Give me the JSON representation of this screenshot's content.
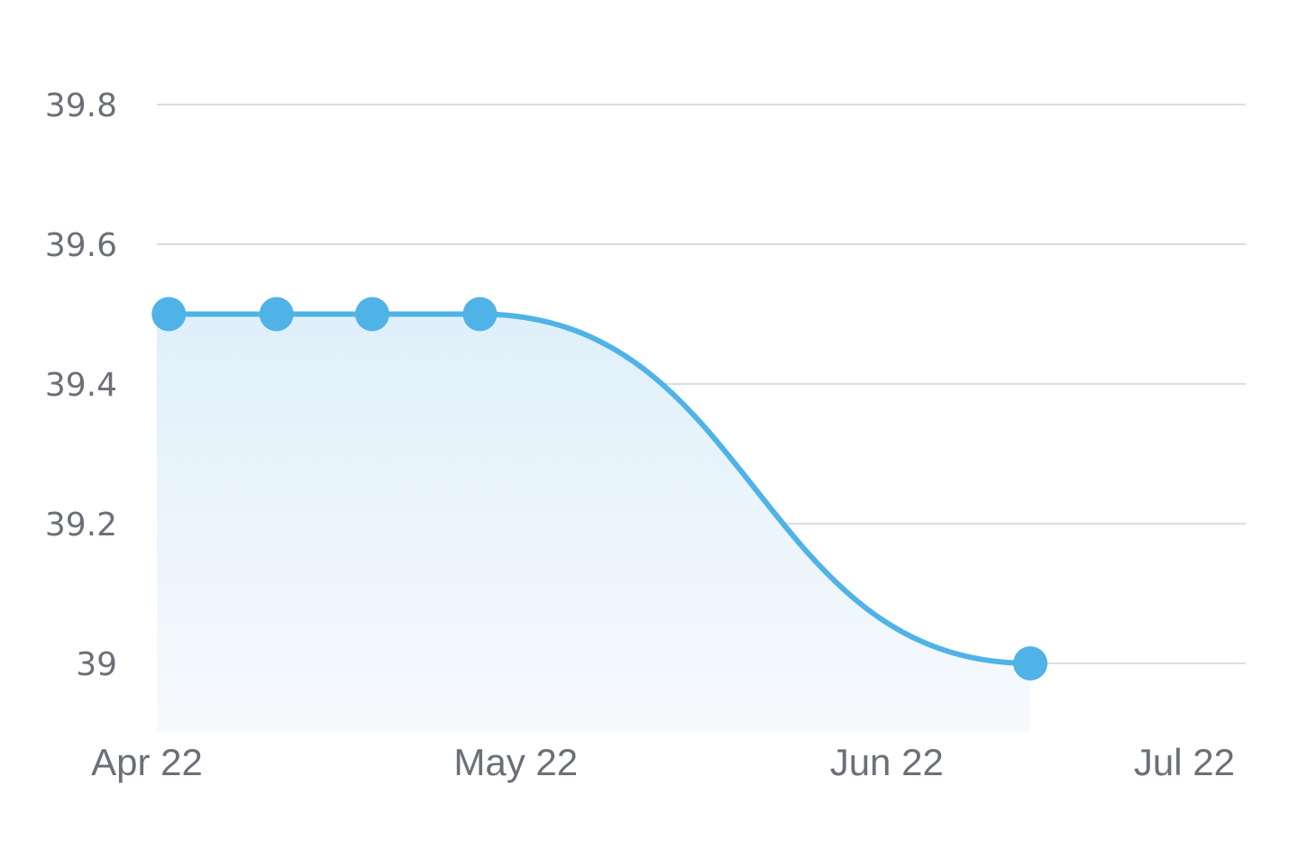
{
  "chart_data": {
    "type": "area",
    "title": "",
    "xlabel": "",
    "ylabel": "",
    "x_ticks": [
      "Apr 22",
      "May 22",
      "Jun 22",
      "Jul 22"
    ],
    "y_ticks": [
      "39.8",
      "39.6",
      "39.4",
      "39.2",
      "39"
    ],
    "y_tick_values": [
      39.8,
      39.6,
      39.4,
      39.2,
      39.0
    ],
    "x_range": [
      "2022-04-01",
      "2022-07-01"
    ],
    "ylim": [
      38.9,
      39.8
    ],
    "grid": true,
    "legend": "none",
    "series": [
      {
        "x": [
          "2022-04-02",
          "2022-04-11",
          "2022-04-19",
          "2022-04-28",
          "2022-06-13"
        ],
        "y": [
          39.5,
          39.5,
          39.5,
          39.5,
          39.0
        ]
      }
    ],
    "colors": {
      "line": "#4fb3e8",
      "fill_top": "#dff0fa",
      "fill_bottom": "#f7fafd",
      "grid": "#d9dde3",
      "tick_text": "#6b6f78"
    }
  }
}
